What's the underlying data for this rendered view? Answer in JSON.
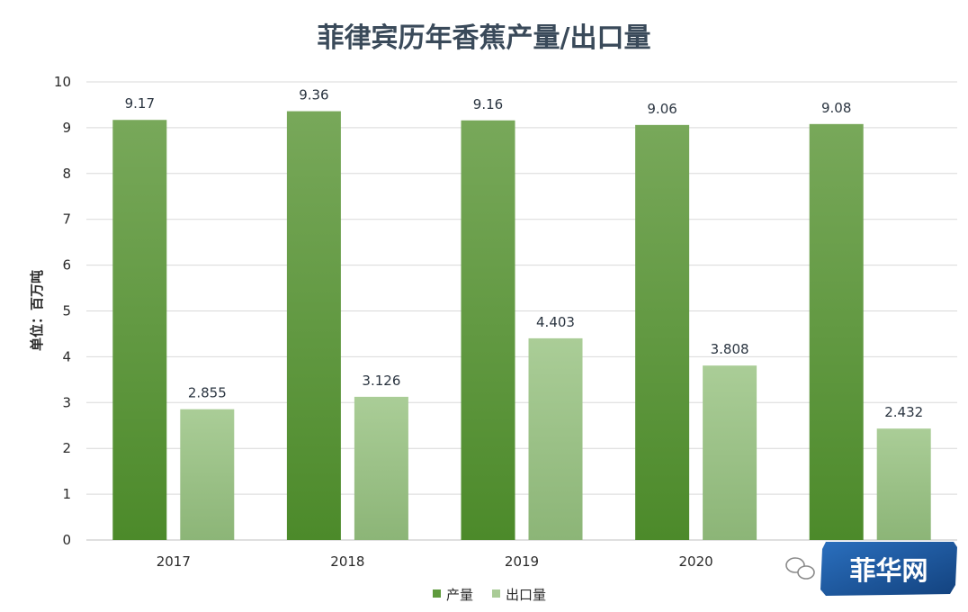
{
  "chart_data": {
    "type": "bar",
    "title": "菲律宾历年香蕉产量/出口量",
    "ylabel": "单位：百万吨",
    "xlabel": "",
    "categories": [
      "2017",
      "2018",
      "2019",
      "2020",
      ""
    ],
    "series": [
      {
        "name": "产量",
        "values": [
          9.17,
          9.36,
          9.16,
          9.06,
          9.08
        ],
        "labels": [
          "9.17",
          "9.36",
          "9.16",
          "9.06",
          "9.08"
        ],
        "color": "#5e9a3c"
      },
      {
        "name": "出口量",
        "values": [
          2.855,
          3.126,
          4.403,
          3.808,
          2.432
        ],
        "labels": [
          "2.855",
          "3.126",
          "4.403",
          "3.808",
          "2.432"
        ],
        "color": "#a9cb96"
      }
    ],
    "ylim": [
      0,
      10
    ],
    "yticks": [
      "0",
      "1",
      "2",
      "3",
      "4",
      "5",
      "6",
      "7",
      "8",
      "9",
      "10"
    ],
    "grid": true,
    "legend_position": "bottom"
  },
  "watermark": {
    "text": "菲华网",
    "icon": "wechat-icon",
    "color": "#1f5fa8"
  }
}
